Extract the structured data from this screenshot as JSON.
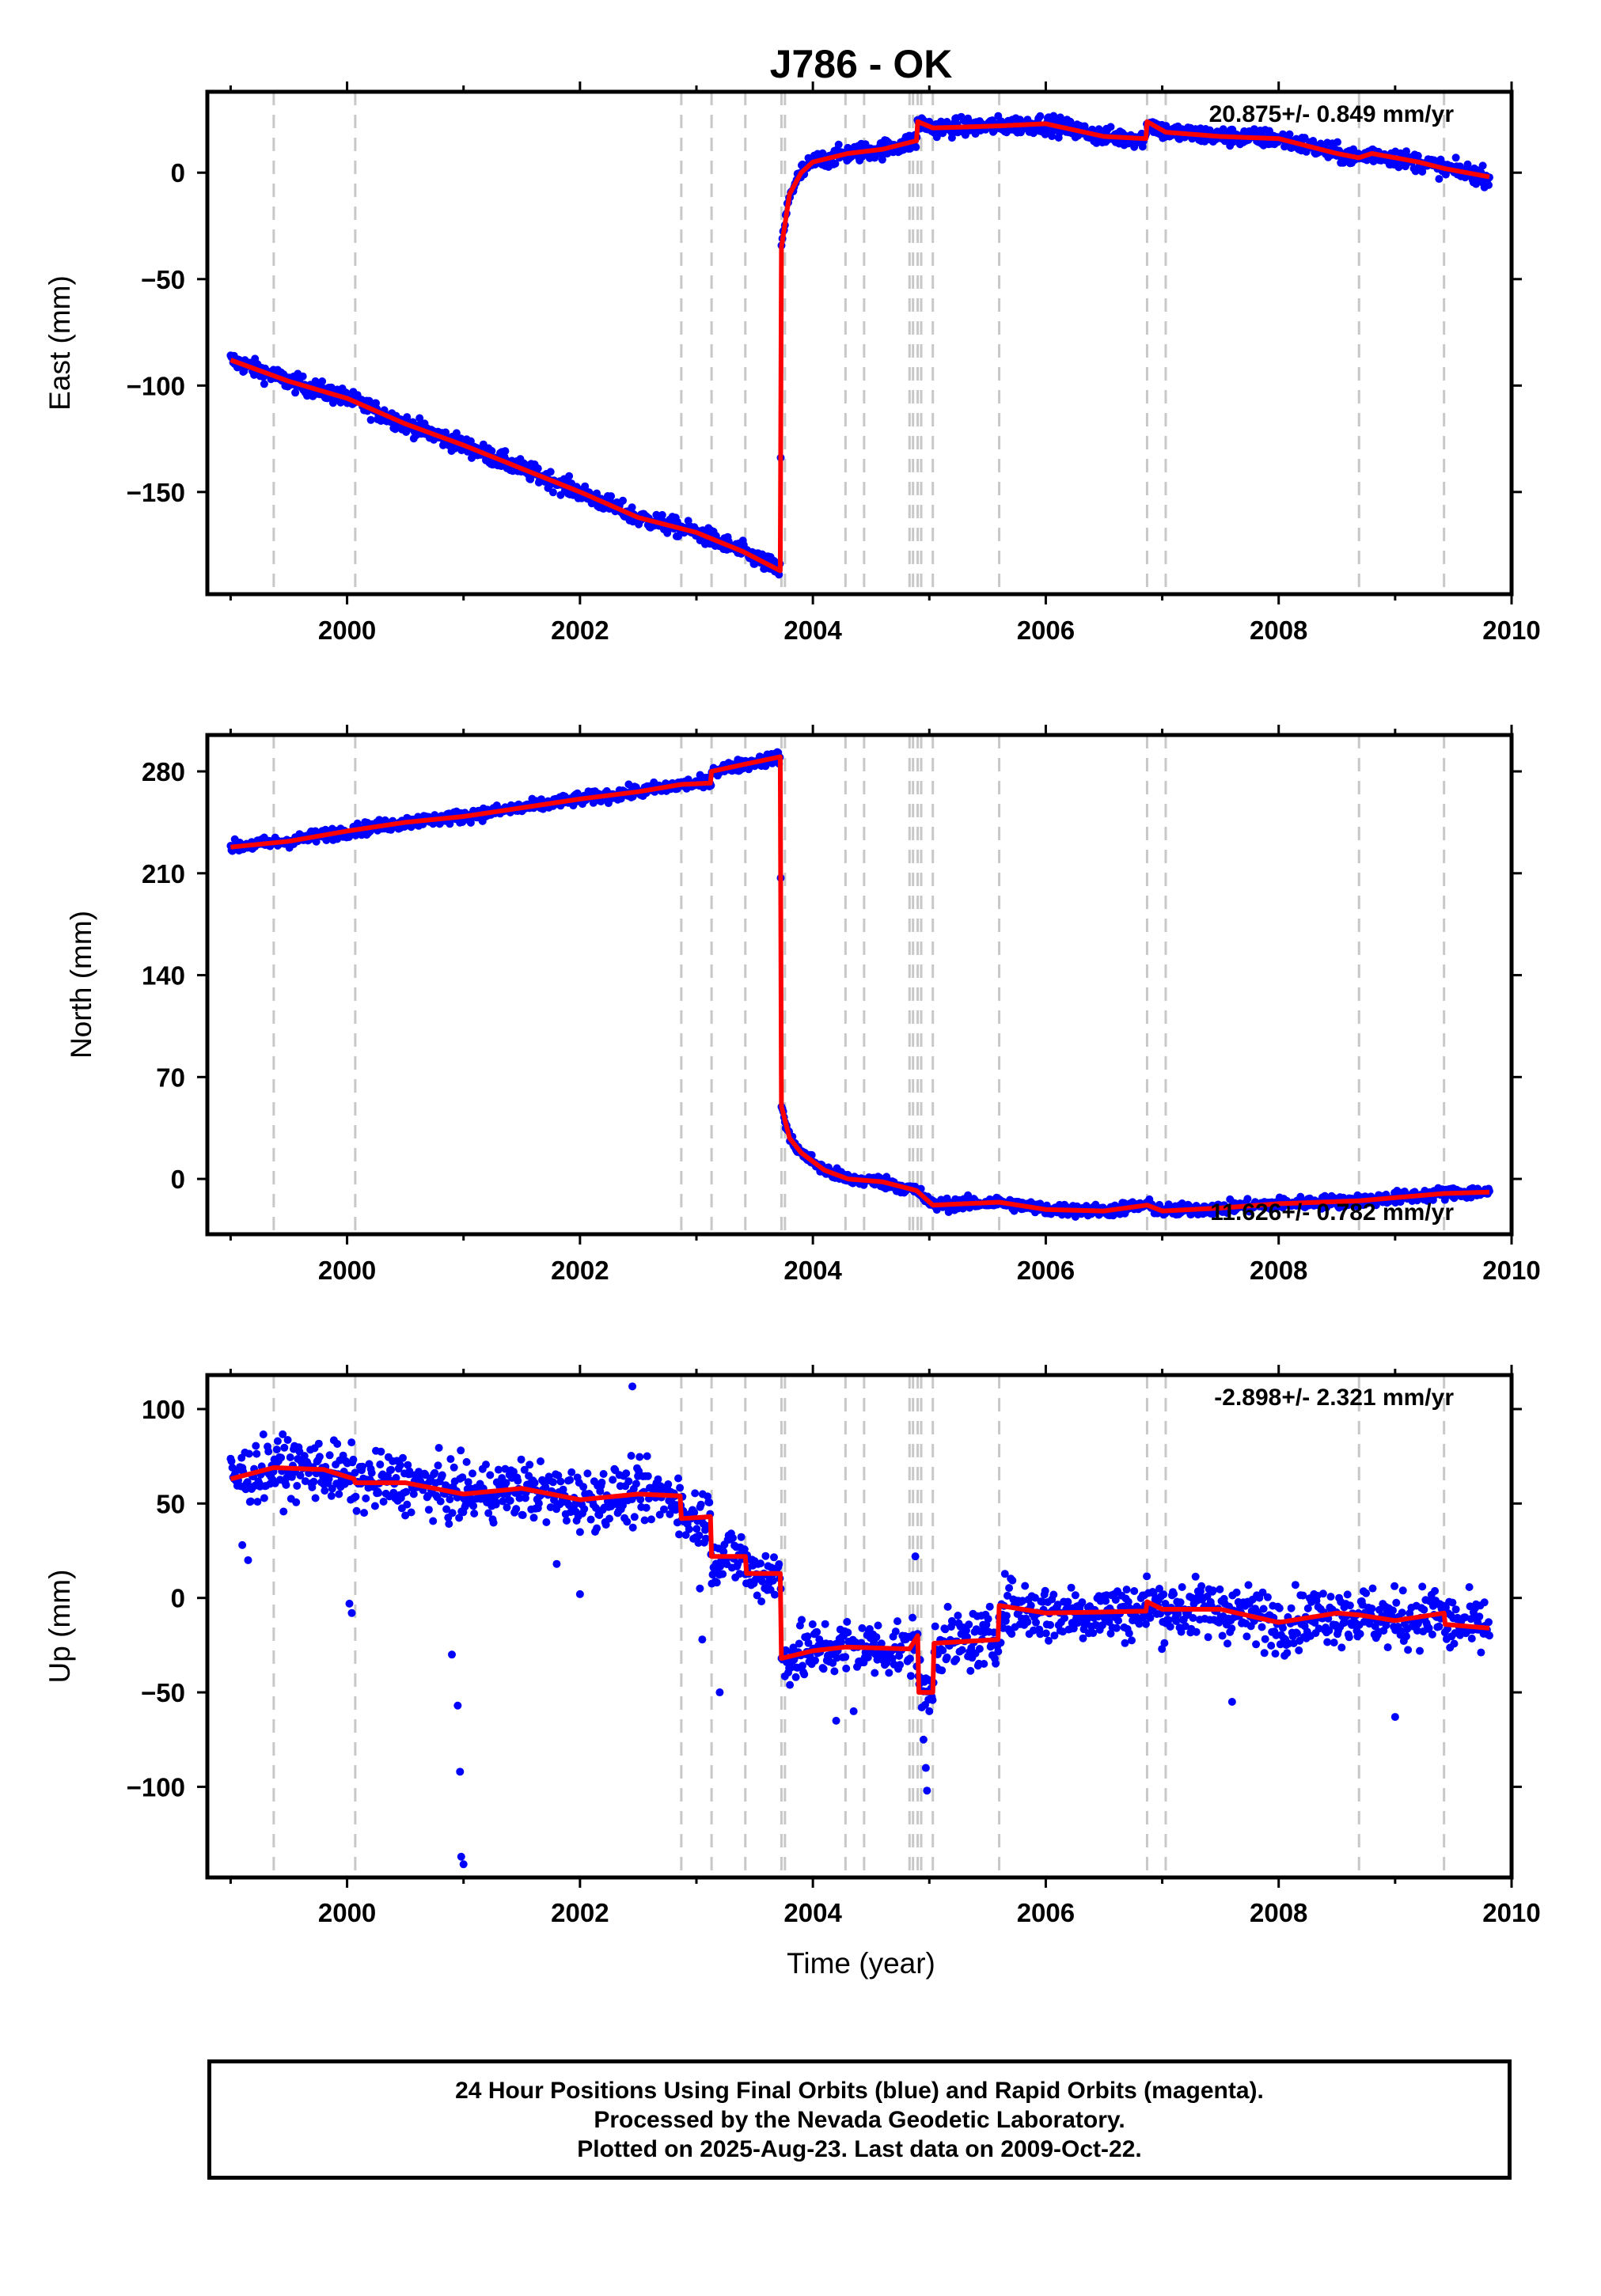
{
  "chart_data": {
    "type": "scatter",
    "title": "J786 - OK",
    "xlabel": "Time (year)",
    "xlim": [
      1998.8,
      2010.0
    ],
    "xticks": [
      2000,
      2002,
      2004,
      2006,
      2008,
      2010
    ],
    "xtick_labels": [
      "2000",
      "2002",
      "2004",
      "2006",
      "2008",
      "2010"
    ],
    "grid": false,
    "series_colors": {
      "positions_final_orbits": "#0000ff",
      "model_fit": "#ff0000",
      "event_lines": "#c8c8c8"
    },
    "event_lines_x": [
      1999.37,
      2000.07,
      2002.87,
      2003.13,
      2003.42,
      2003.73,
      2003.76,
      2004.28,
      2004.44,
      2004.83,
      2004.86,
      2004.9,
      2004.93,
      2005.03,
      2005.6,
      2006.87,
      2007.03,
      2008.69,
      2009.42
    ],
    "panels": [
      {
        "name": "East",
        "ylabel": "East (mm)",
        "ylim": [
          -198,
          38
        ],
        "yticks": [
          0,
          -50,
          -100,
          -150
        ],
        "ytick_labels": [
          "0",
          "−50",
          "−100",
          "−150"
        ],
        "rate_text": "20.875+/- 0.849 mm/yr",
        "scatter_spread": 3,
        "model": [
          {
            "x": 1999.0,
            "y": -88
          },
          {
            "x": 1999.5,
            "y": -98
          },
          {
            "x": 2000.0,
            "y": -106
          },
          {
            "x": 2000.5,
            "y": -118
          },
          {
            "x": 2001.0,
            "y": -128
          },
          {
            "x": 2001.5,
            "y": -139
          },
          {
            "x": 2002.0,
            "y": -150
          },
          {
            "x": 2002.5,
            "y": -162
          },
          {
            "x": 2003.0,
            "y": -169
          },
          {
            "x": 2003.4,
            "y": -178
          },
          {
            "x": 2003.72,
            "y": -187
          },
          {
            "x": 2003.73,
            "y": -35
          },
          {
            "x": 2003.8,
            "y": -10
          },
          {
            "x": 2003.9,
            "y": 0
          },
          {
            "x": 2004.0,
            "y": 5
          },
          {
            "x": 2004.3,
            "y": 9
          },
          {
            "x": 2004.6,
            "y": 11
          },
          {
            "x": 2004.89,
            "y": 15
          },
          {
            "x": 2004.9,
            "y": 24
          },
          {
            "x": 2005.03,
            "y": 21
          },
          {
            "x": 2005.6,
            "y": 22
          },
          {
            "x": 2006.0,
            "y": 23
          },
          {
            "x": 2006.5,
            "y": 17
          },
          {
            "x": 2006.86,
            "y": 16
          },
          {
            "x": 2006.87,
            "y": 24
          },
          {
            "x": 2007.03,
            "y": 19
          },
          {
            "x": 2007.5,
            "y": 17
          },
          {
            "x": 2008.0,
            "y": 16
          },
          {
            "x": 2008.5,
            "y": 9
          },
          {
            "x": 2008.69,
            "y": 7
          },
          {
            "x": 2008.8,
            "y": 9
          },
          {
            "x": 2009.2,
            "y": 5
          },
          {
            "x": 2009.42,
            "y": 2
          },
          {
            "x": 2009.81,
            "y": -2
          }
        ],
        "outliers": []
      },
      {
        "name": "North",
        "ylabel": "North (mm)",
        "ylim": [
          -38,
          305
        ],
        "yticks": [
          280,
          210,
          140,
          70,
          0
        ],
        "ytick_labels": [
          "280",
          "210",
          "140",
          "70",
          "0"
        ],
        "rate_text": "11.626+/- 0.782 mm/yr",
        "scatter_spread": 3,
        "model": [
          {
            "x": 1999.0,
            "y": 228
          },
          {
            "x": 1999.5,
            "y": 232
          },
          {
            "x": 2000.0,
            "y": 239
          },
          {
            "x": 2000.5,
            "y": 245
          },
          {
            "x": 2001.0,
            "y": 249
          },
          {
            "x": 2001.5,
            "y": 255
          },
          {
            "x": 2002.0,
            "y": 261
          },
          {
            "x": 2002.5,
            "y": 266
          },
          {
            "x": 2002.87,
            "y": 271
          },
          {
            "x": 2003.12,
            "y": 272
          },
          {
            "x": 2003.13,
            "y": 280
          },
          {
            "x": 2003.42,
            "y": 285
          },
          {
            "x": 2003.72,
            "y": 290
          },
          {
            "x": 2003.73,
            "y": 50
          },
          {
            "x": 2003.8,
            "y": 28
          },
          {
            "x": 2003.9,
            "y": 18
          },
          {
            "x": 2004.1,
            "y": 6
          },
          {
            "x": 2004.3,
            "y": 0
          },
          {
            "x": 2004.6,
            "y": -2
          },
          {
            "x": 2004.89,
            "y": -8
          },
          {
            "x": 2005.03,
            "y": -18
          },
          {
            "x": 2005.6,
            "y": -16
          },
          {
            "x": 2006.0,
            "y": -21
          },
          {
            "x": 2006.5,
            "y": -22
          },
          {
            "x": 2006.87,
            "y": -18
          },
          {
            "x": 2007.0,
            "y": -22
          },
          {
            "x": 2007.5,
            "y": -20
          },
          {
            "x": 2008.0,
            "y": -17
          },
          {
            "x": 2008.69,
            "y": -15
          },
          {
            "x": 2009.42,
            "y": -10
          },
          {
            "x": 2009.81,
            "y": -9
          }
        ],
        "outliers": []
      },
      {
        "name": "Up",
        "ylabel": "Up (mm)",
        "ylim": [
          -148,
          118
        ],
        "yticks": [
          100,
          50,
          0,
          -50,
          -100
        ],
        "ytick_labels": [
          "100",
          "50",
          "0",
          "−50",
          "−100"
        ],
        "rate_text": "-2.898+/- 2.321 mm/yr",
        "scatter_spread": 11,
        "model": [
          {
            "x": 1999.0,
            "y": 63
          },
          {
            "x": 1999.37,
            "y": 69
          },
          {
            "x": 1999.8,
            "y": 68
          },
          {
            "x": 2000.06,
            "y": 63
          },
          {
            "x": 2000.07,
            "y": 61
          },
          {
            "x": 2000.5,
            "y": 61
          },
          {
            "x": 2001.0,
            "y": 55
          },
          {
            "x": 2001.5,
            "y": 58
          },
          {
            "x": 2002.0,
            "y": 52
          },
          {
            "x": 2002.5,
            "y": 55
          },
          {
            "x": 2002.86,
            "y": 54
          },
          {
            "x": 2002.87,
            "y": 42
          },
          {
            "x": 2003.12,
            "y": 43
          },
          {
            "x": 2003.13,
            "y": 22
          },
          {
            "x": 2003.42,
            "y": 22
          },
          {
            "x": 2003.43,
            "y": 13
          },
          {
            "x": 2003.72,
            "y": 13
          },
          {
            "x": 2003.73,
            "y": -32
          },
          {
            "x": 2004.0,
            "y": -28
          },
          {
            "x": 2004.28,
            "y": -26
          },
          {
            "x": 2004.83,
            "y": -27
          },
          {
            "x": 2004.9,
            "y": -20
          },
          {
            "x": 2004.91,
            "y": -50
          },
          {
            "x": 2005.03,
            "y": -50
          },
          {
            "x": 2005.04,
            "y": -24
          },
          {
            "x": 2005.59,
            "y": -22
          },
          {
            "x": 2005.6,
            "y": -4
          },
          {
            "x": 2006.0,
            "y": -8
          },
          {
            "x": 2006.86,
            "y": -7
          },
          {
            "x": 2006.87,
            "y": -2
          },
          {
            "x": 2007.0,
            "y": -6
          },
          {
            "x": 2007.5,
            "y": -6
          },
          {
            "x": 2008.0,
            "y": -13
          },
          {
            "x": 2008.5,
            "y": -8
          },
          {
            "x": 2008.69,
            "y": -9
          },
          {
            "x": 2009.0,
            "y": -12
          },
          {
            "x": 2009.42,
            "y": -8
          },
          {
            "x": 2009.43,
            "y": -14
          },
          {
            "x": 2009.81,
            "y": -16
          }
        ],
        "outliers": [
          {
            "x": 1999.1,
            "y": 28
          },
          {
            "x": 1999.15,
            "y": 20
          },
          {
            "x": 2000.02,
            "y": -3
          },
          {
            "x": 2000.04,
            "y": -8
          },
          {
            "x": 2000.9,
            "y": -30
          },
          {
            "x": 2000.95,
            "y": -57
          },
          {
            "x": 2000.97,
            "y": -92
          },
          {
            "x": 2000.98,
            "y": -137
          },
          {
            "x": 2001.0,
            "y": -141
          },
          {
            "x": 2001.8,
            "y": 18
          },
          {
            "x": 2002.0,
            "y": 2
          },
          {
            "x": 2002.45,
            "y": 112
          },
          {
            "x": 2003.03,
            "y": 5
          },
          {
            "x": 2003.05,
            "y": -22
          },
          {
            "x": 2003.2,
            "y": -50
          },
          {
            "x": 2004.2,
            "y": -65
          },
          {
            "x": 2004.35,
            "y": -60
          },
          {
            "x": 2004.95,
            "y": -75
          },
          {
            "x": 2004.97,
            "y": -90
          },
          {
            "x": 2004.98,
            "y": -102
          },
          {
            "x": 2004.88,
            "y": 22
          },
          {
            "x": 2007.6,
            "y": -55
          },
          {
            "x": 2009.0,
            "y": -63
          }
        ]
      }
    ]
  },
  "caption": {
    "line1": "24 Hour Positions Using Final Orbits (blue) and Rapid Orbits (magenta).",
    "line2": "Processed by the Nevada Geodetic Laboratory.",
    "line3": "Plotted on 2025-Aug-23. Last data on 2009-Oct-22."
  }
}
